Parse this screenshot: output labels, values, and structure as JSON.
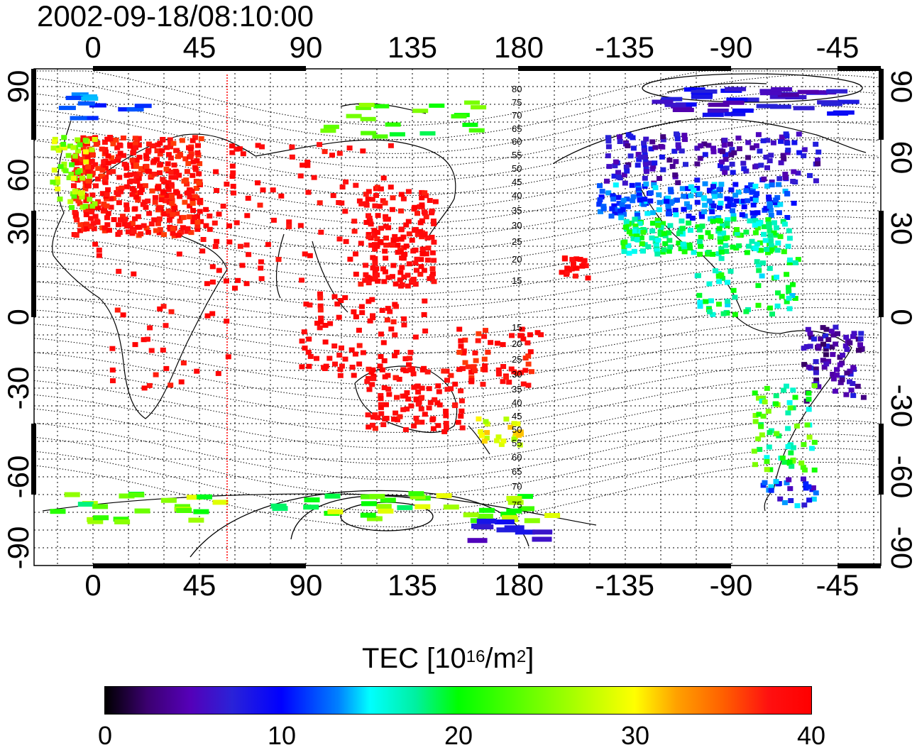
{
  "title": "2002-09-18/08:10:00",
  "axes": {
    "lon_labels": [
      "0",
      "45",
      "90",
      "135",
      "180",
      "-135",
      "-90",
      "-45"
    ],
    "lat_labels": [
      "90",
      "60",
      "30",
      "0",
      "-30",
      "-60",
      "-90"
    ]
  },
  "contour_labels": [
    "80",
    "75",
    "70",
    "65",
    "60",
    "55",
    "50",
    "45",
    "40",
    "35",
    "30",
    "25",
    "20",
    "15",
    "15",
    "20",
    "25",
    "30",
    "35",
    "40",
    "45",
    "50",
    "55",
    "60",
    "65",
    "70",
    "75"
  ],
  "colorbar": {
    "title_prefix": "TEC  [10",
    "title_sup1": "16",
    "title_mid": "/m",
    "title_sup2": "2",
    "title_suffix": "]",
    "tick_labels": [
      "0",
      "10",
      "20",
      "30",
      "40"
    ],
    "range": [
      0,
      40
    ]
  },
  "colors": {
    "high_tec": "#ff1a1a",
    "terminator_line": "#ff0000",
    "coastline": "#000000"
  }
}
